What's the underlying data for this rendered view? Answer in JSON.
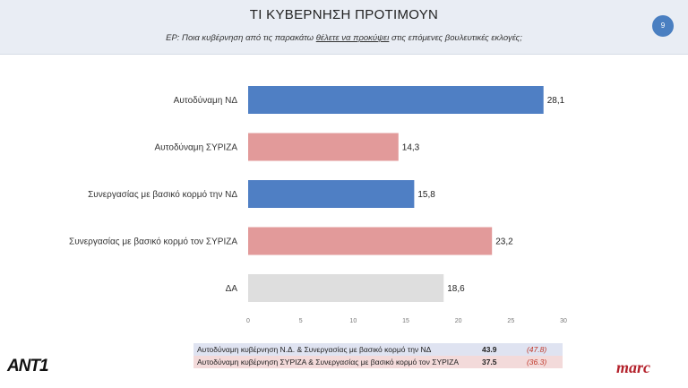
{
  "header": {
    "title": "ΤΙ ΚΥΒΕΡΝΗΣΗ ΠΡΟΤΙΜΟΥΝ",
    "subtitle_pre": "ΕΡ: Ποια κυβέρνηση από τις παρακάτω ",
    "subtitle_underlined": "θέλετε να προκύψει",
    "subtitle_post": " στις επόμενες βουλευτικές εκλογές;",
    "page_number": "9"
  },
  "chart_data": {
    "type": "bar",
    "orientation": "horizontal",
    "categories": [
      "Αυτοδύναμη ΝΔ",
      "Αυτοδύναμη ΣΥΡΙΖΑ",
      "Συνεργασίας με βασικό κορμό την ΝΔ",
      "Συνεργασίας με βασικό κορμό τον ΣΥΡΙΖΑ",
      "ΔΑ"
    ],
    "values": [
      28.1,
      14.3,
      15.8,
      23.2,
      18.6
    ],
    "value_labels": [
      "28,1",
      "14,3",
      "15,8",
      "23,2",
      "18,6"
    ],
    "colors": [
      "#4f7fc4",
      "#e29a9a",
      "#4f7fc4",
      "#e29a9a",
      "#dedede"
    ],
    "xlim": [
      0,
      30
    ],
    "xticks": [
      "0",
      "5",
      "10",
      "15",
      "20",
      "25",
      "30"
    ],
    "grid": false,
    "legend": "none"
  },
  "summary": [
    {
      "label": "Αυτοδύναμη κυβέρνηση Ν.Δ. & Συνεργασίας με βασικό κορμό την ΝΔ",
      "value": "43.9",
      "previous": "(47.8)"
    },
    {
      "label": "Αυτοδύναμη κυβέρνηση ΣΥΡΙΖΑ & Συνεργασίας με βασικό κορμό τον ΣΥΡΙΖΑ",
      "value": "37.5",
      "previous": "(36.3)"
    }
  ],
  "logos": {
    "left": "ANT1",
    "right": "marc"
  }
}
